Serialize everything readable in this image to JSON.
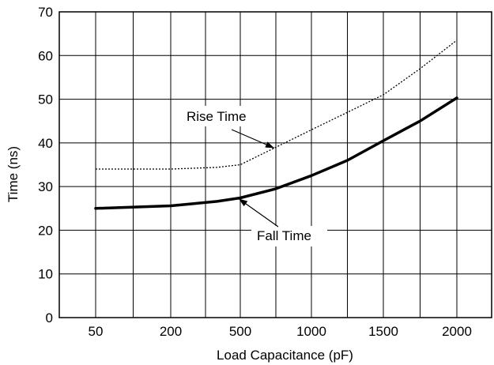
{
  "chart_data": {
    "type": "line",
    "xlabel": "Load Capacitance (pF)",
    "ylabel": "Time (ns)",
    "categories": [
      "50",
      "200",
      "500",
      "1000",
      "1500",
      "2000"
    ],
    "ylim": [
      0,
      70
    ],
    "yticks": [
      "0",
      "10",
      "20",
      "30",
      "40",
      "50",
      "60",
      "70"
    ],
    "grid": true,
    "series": [
      {
        "name": "Rise Time",
        "style": "dotted",
        "color": "#000000",
        "points": [
          {
            "x": 50,
            "y": 34
          },
          {
            "x": 200,
            "y": 34
          },
          {
            "x": 300,
            "y": 34.2
          },
          {
            "x": 400,
            "y": 34.4
          },
          {
            "x": 500,
            "y": 35
          },
          {
            "x": 750,
            "y": 39
          },
          {
            "x": 1000,
            "y": 43
          },
          {
            "x": 1250,
            "y": 47
          },
          {
            "x": 1500,
            "y": 51
          },
          {
            "x": 1750,
            "y": 57
          },
          {
            "x": 2000,
            "y": 63.5
          }
        ]
      },
      {
        "name": "Fall Time",
        "style": "solid-bold",
        "color": "#000000",
        "points": [
          {
            "x": 50,
            "y": 25
          },
          {
            "x": 200,
            "y": 25.6
          },
          {
            "x": 300,
            "y": 26.1
          },
          {
            "x": 400,
            "y": 26.6
          },
          {
            "x": 500,
            "y": 27.4
          },
          {
            "x": 750,
            "y": 29.5
          },
          {
            "x": 1000,
            "y": 32.5
          },
          {
            "x": 1250,
            "y": 36
          },
          {
            "x": 1500,
            "y": 40.5
          },
          {
            "x": 1750,
            "y": 45
          },
          {
            "x": 2000,
            "y": 50.3
          }
        ]
      }
    ],
    "annotations": [
      {
        "text": "Rise Time",
        "target_series": "Rise Time",
        "target_x": 750
      },
      {
        "text": "Fall Time",
        "target_series": "Fall Time",
        "target_x": 500
      }
    ]
  }
}
